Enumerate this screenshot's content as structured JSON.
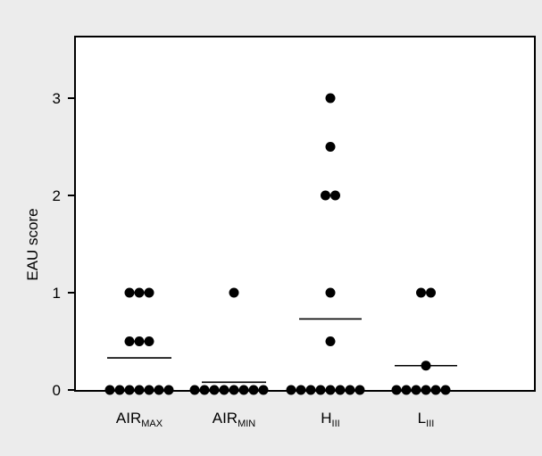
{
  "chart_data": {
    "type": "scatter",
    "chart_subtype": "dot-strip plot with median lines",
    "ylabel": "EAU score",
    "xlabel": "",
    "title": "",
    "ylim": [
      0,
      3.6
    ],
    "yticks": [
      "0",
      "1",
      "2",
      "3"
    ],
    "grid": false,
    "legend": "none",
    "colors": {
      "background": "#ececec",
      "plot_area": "#ffffff",
      "points": "#000000"
    },
    "categories": [
      {
        "base": "AIR",
        "sub": "MAX"
      },
      {
        "base": "AIR",
        "sub": "MIN"
      },
      {
        "base": "H",
        "sub": "III"
      },
      {
        "base": "L",
        "sub": "III"
      }
    ],
    "groups": [
      {
        "points": [
          {
            "offset": -3,
            "y": 0
          },
          {
            "offset": -2,
            "y": 0
          },
          {
            "offset": -1,
            "y": 0
          },
          {
            "offset": 0,
            "y": 0
          },
          {
            "offset": 1,
            "y": 0
          },
          {
            "offset": 2,
            "y": 0
          },
          {
            "offset": 3,
            "y": 0
          },
          {
            "offset": -1,
            "y": 0.5
          },
          {
            "offset": 0,
            "y": 0.5
          },
          {
            "offset": 1,
            "y": 0.5
          },
          {
            "offset": -1,
            "y": 1
          },
          {
            "offset": 0,
            "y": 1
          },
          {
            "offset": 1,
            "y": 1
          }
        ],
        "median": 0.33
      },
      {
        "points": [
          {
            "offset": -4,
            "y": 0
          },
          {
            "offset": -3,
            "y": 0
          },
          {
            "offset": -2,
            "y": 0
          },
          {
            "offset": -1,
            "y": 0
          },
          {
            "offset": 0,
            "y": 0
          },
          {
            "offset": 1,
            "y": 0
          },
          {
            "offset": 2,
            "y": 0
          },
          {
            "offset": 3,
            "y": 0
          },
          {
            "offset": 0,
            "y": 1
          }
        ],
        "median": 0.08
      },
      {
        "points": [
          {
            "offset": -4,
            "y": 0
          },
          {
            "offset": -3,
            "y": 0
          },
          {
            "offset": -2,
            "y": 0
          },
          {
            "offset": -1,
            "y": 0
          },
          {
            "offset": 0,
            "y": 0
          },
          {
            "offset": 1,
            "y": 0
          },
          {
            "offset": 2,
            "y": 0
          },
          {
            "offset": 3,
            "y": 0
          },
          {
            "offset": 0,
            "y": 0.5
          },
          {
            "offset": 0,
            "y": 1
          },
          {
            "offset": -0.5,
            "y": 2
          },
          {
            "offset": 0.5,
            "y": 2
          },
          {
            "offset": 0,
            "y": 2.5
          },
          {
            "offset": 0,
            "y": 3
          }
        ],
        "median": 0.73
      },
      {
        "points": [
          {
            "offset": -3,
            "y": 0
          },
          {
            "offset": -2,
            "y": 0
          },
          {
            "offset": -1,
            "y": 0
          },
          {
            "offset": 0,
            "y": 0
          },
          {
            "offset": 1,
            "y": 0
          },
          {
            "offset": 2,
            "y": 0
          },
          {
            "offset": 0,
            "y": 0.25
          },
          {
            "offset": -0.5,
            "y": 1
          },
          {
            "offset": 0.5,
            "y": 1
          }
        ],
        "median": 0.25
      }
    ]
  }
}
